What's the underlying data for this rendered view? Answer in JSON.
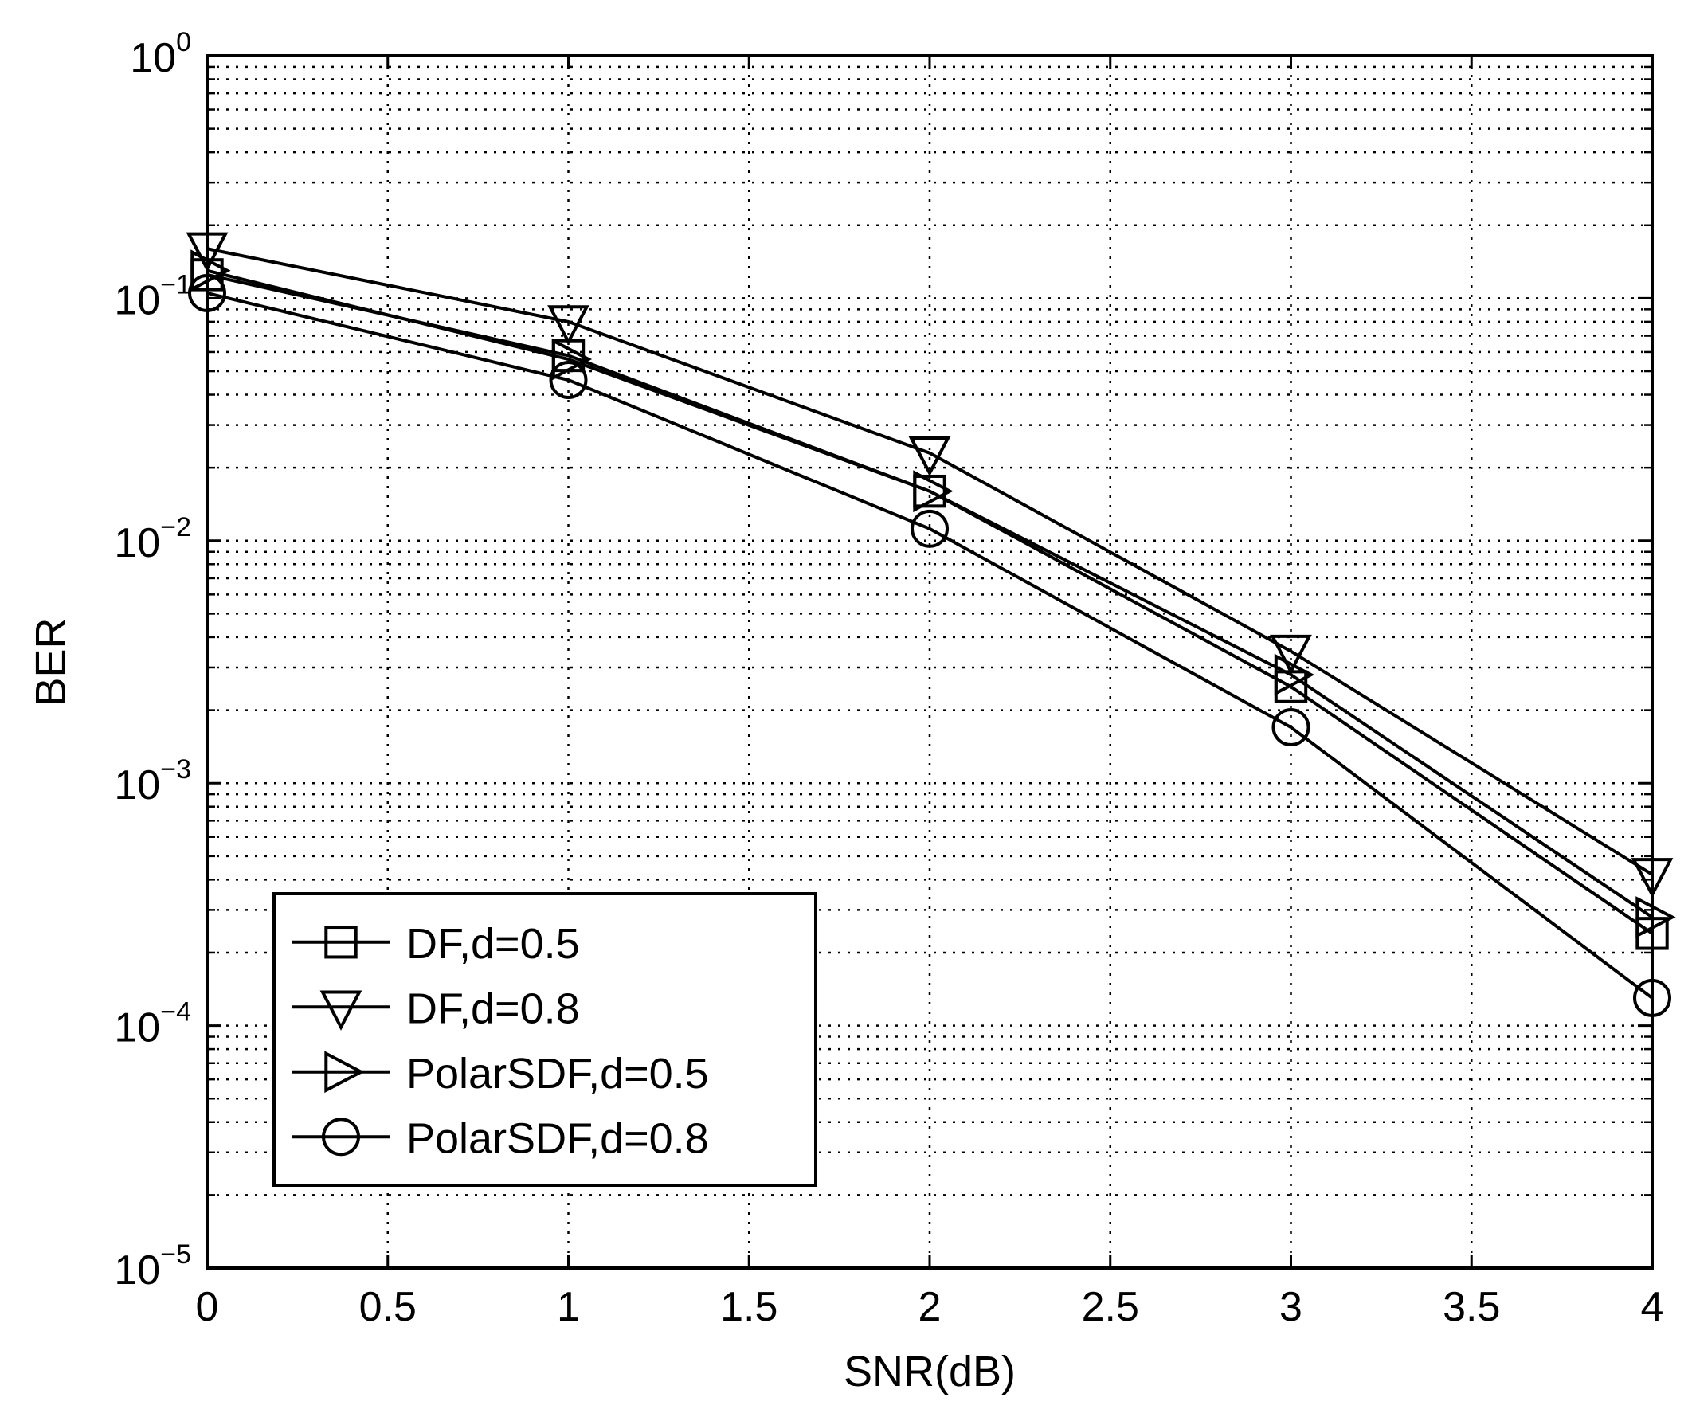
{
  "chart_data": {
    "type": "line",
    "title": "",
    "xlabel": "SNR(dB)",
    "ylabel": "BER",
    "xscale": "linear",
    "yscale": "log",
    "xlim": [
      0,
      4
    ],
    "ylim": [
      1e-05,
      1
    ],
    "grid": true,
    "legend_position": "bottom-left",
    "x": [
      0,
      1,
      2,
      3,
      4
    ],
    "x_ticks": [
      "0",
      "0.5",
      "1",
      "1.5",
      "2",
      "2.5",
      "3",
      "3.5",
      "4"
    ],
    "y_ticks": [
      {
        "base": "10",
        "exp": "0"
      },
      {
        "base": "10",
        "exp": "−1"
      },
      {
        "base": "10",
        "exp": "−2"
      },
      {
        "base": "10",
        "exp": "−3"
      },
      {
        "base": "10",
        "exp": "−4"
      },
      {
        "base": "10",
        "exp": "−5"
      }
    ],
    "series": [
      {
        "name": "DF,d=0.5",
        "marker": "square",
        "values": [
          0.125,
          0.058,
          0.016,
          0.0025,
          0.00024
        ]
      },
      {
        "name": "DF,d=0.8",
        "marker": "triangle-down",
        "values": [
          0.16,
          0.08,
          0.023,
          0.0035,
          0.00042
        ]
      },
      {
        "name": "PolarSDF,d=0.5",
        "marker": "triangle-right",
        "values": [
          0.13,
          0.056,
          0.016,
          0.0028,
          0.00028
        ]
      },
      {
        "name": "PolarSDF,d=0.8",
        "marker": "circle",
        "values": [
          0.105,
          0.046,
          0.0112,
          0.0017,
          0.00013
        ]
      }
    ],
    "colors": {
      "line": "#000000",
      "grid": "#000000",
      "background": "#ffffff"
    }
  }
}
